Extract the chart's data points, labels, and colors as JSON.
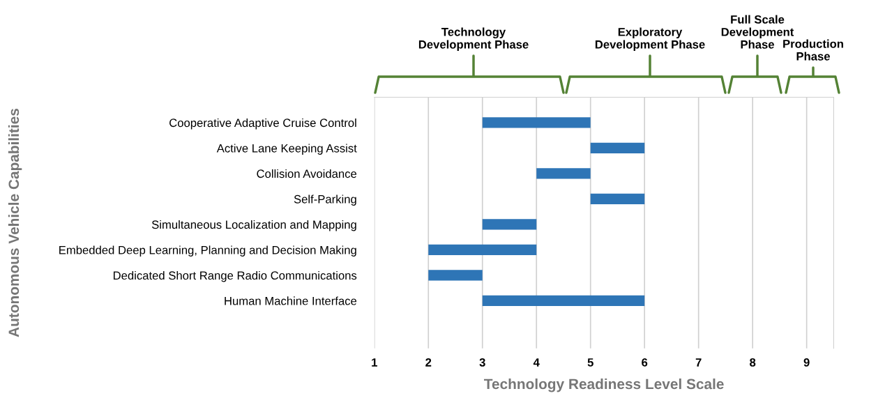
{
  "chart_data": {
    "type": "bar",
    "orientation": "horizontal",
    "xlabel": "Technology Readiness Level Scale",
    "ylabel": "Autonomous Vehicle Capabilities",
    "categories": [
      "Cooperative Adaptive Cruise Control",
      "Active Lane Keeping Assist",
      "Collision Avoidance",
      "Self-Parking",
      "Simultaneous Localization and Mapping",
      "Embedded Deep Learning, Planning and Decision Making",
      "Dedicated Short Range Radio Communications",
      "Human Machine Interface"
    ],
    "base": [
      3,
      5,
      4,
      5,
      3,
      2,
      2,
      3
    ],
    "values": [
      2,
      1,
      1,
      1,
      1,
      2,
      1,
      3
    ],
    "color": "#2e75b6",
    "xlim": [
      1,
      9.5
    ],
    "xticks": [
      1,
      2,
      3,
      4,
      5,
      6,
      7,
      8,
      9
    ],
    "grid": "x",
    "annotations": [
      "Technology\nDevelopment Phase",
      "Exploratory\nDevelopment Phase",
      "Full Scale\nDevelopment\nPhase",
      "Production\nPhase"
    ]
  }
}
